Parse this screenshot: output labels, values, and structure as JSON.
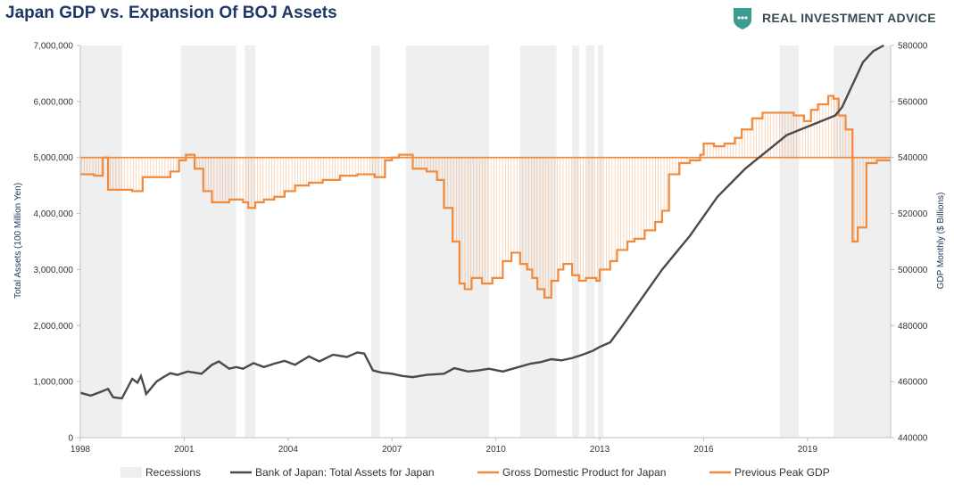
{
  "header": {
    "title": "Japan GDP vs. Expansion Of BOJ Assets",
    "brand_name": "REAL INVESTMENT ADVICE",
    "brand_icon": "chart-shield-icon"
  },
  "colors": {
    "title": "#1f3864",
    "boj": "#4a4a4a",
    "gdp": "#f08a3c",
    "recession": "#efefef",
    "brand": "#3a9d8f"
  },
  "chart_data": {
    "type": "line",
    "title": "Japan GDP vs. Expansion Of BOJ Assets",
    "xlim": [
      1998,
      2021.4
    ],
    "x_ticks": [
      1998,
      2001,
      2004,
      2007,
      2010,
      2013,
      2016,
      2019
    ],
    "x_tick_labels": [
      "1998",
      "2001",
      "2004",
      "2007",
      "2010",
      "2013",
      "2016",
      "2019"
    ],
    "y_left": {
      "label": "Total Assets (100 Million Yen)",
      "lim": [
        0,
        7000000
      ],
      "ticks": [
        0,
        1000000,
        2000000,
        3000000,
        4000000,
        5000000,
        6000000,
        7000000
      ],
      "tick_labels": [
        "0",
        "1,000,000",
        "2,000,000",
        "3,000,000",
        "4,000,000",
        "5,000,000",
        "6,000,000",
        "7,000,000"
      ]
    },
    "y_right": {
      "label": "GDP Monthly ($ Billions)",
      "lim": [
        440000,
        580000
      ],
      "ticks": [
        440000,
        460000,
        480000,
        500000,
        520000,
        540000,
        560000,
        580000
      ],
      "tick_labels": [
        "440000",
        "460000",
        "480000",
        "500000",
        "520000",
        "540000",
        "560000",
        "580000"
      ]
    },
    "recessions": [
      [
        1998.0,
        1999.2
      ],
      [
        2000.9,
        2002.5
      ],
      [
        2002.75,
        2003.05
      ],
      [
        2006.4,
        2006.65
      ],
      [
        2007.4,
        2009.8
      ],
      [
        2010.7,
        2011.75
      ],
      [
        2012.2,
        2012.4
      ],
      [
        2012.6,
        2012.85
      ],
      [
        2012.95,
        2013.1
      ],
      [
        2018.2,
        2018.75
      ],
      [
        2019.75,
        2021.4
      ]
    ],
    "legend": [
      "Recessions",
      "Bank of Japan: Total Assets for Japan",
      "Gross Domestic Product for Japan",
      "Previous Peak GDP"
    ],
    "legend_position": "bottom",
    "grid": false,
    "series": [
      {
        "name": "Bank of Japan: Total Assets for Japan",
        "axis": "left",
        "x": [
          1998.0,
          1998.3,
          1998.6,
          1998.8,
          1998.95,
          1999.2,
          1999.5,
          1999.65,
          1999.75,
          1999.85,
          1999.9,
          2000.0,
          2000.2,
          2000.4,
          2000.6,
          2000.8,
          2001.1,
          2001.5,
          2001.8,
          2002.0,
          2002.3,
          2002.5,
          2002.7,
          2003.0,
          2003.3,
          2003.6,
          2003.9,
          2004.2,
          2004.6,
          2004.9,
          2005.3,
          2005.7,
          2006.0,
          2006.2,
          2006.45,
          2006.7,
          2007.0,
          2007.3,
          2007.6,
          2008.0,
          2008.5,
          2008.8,
          2009.2,
          2009.5,
          2009.8,
          2010.2,
          2010.6,
          2011.0,
          2011.3,
          2011.6,
          2011.9,
          2012.2,
          2012.5,
          2012.8,
          2013.0,
          2013.3,
          2013.6,
          2014.0,
          2014.4,
          2014.8,
          2015.2,
          2015.6,
          2016.0,
          2016.4,
          2016.8,
          2017.2,
          2017.6,
          2018.0,
          2018.4,
          2018.8,
          2019.2,
          2019.6,
          2019.8,
          2020.0,
          2020.3,
          2020.6,
          2020.9,
          2021.2
        ],
        "values": [
          800000,
          750000,
          820000,
          870000,
          720000,
          700000,
          1050000,
          980000,
          1100000,
          900000,
          780000,
          850000,
          1000000,
          1080000,
          1150000,
          1120000,
          1180000,
          1140000,
          1300000,
          1360000,
          1230000,
          1260000,
          1230000,
          1330000,
          1260000,
          1320000,
          1370000,
          1300000,
          1450000,
          1360000,
          1480000,
          1440000,
          1520000,
          1500000,
          1200000,
          1160000,
          1140000,
          1100000,
          1080000,
          1120000,
          1140000,
          1240000,
          1180000,
          1200000,
          1230000,
          1180000,
          1250000,
          1320000,
          1350000,
          1400000,
          1380000,
          1420000,
          1480000,
          1550000,
          1620000,
          1700000,
          1950000,
          2300000,
          2650000,
          3000000,
          3300000,
          3600000,
          3950000,
          4300000,
          4550000,
          4800000,
          5000000,
          5200000,
          5400000,
          5500000,
          5600000,
          5700000,
          5750000,
          5900000,
          6300000,
          6700000,
          6900000,
          7100000
        ]
      },
      {
        "name": "Gross Domestic Product for Japan",
        "axis": "right",
        "x": [
          1998.0,
          1998.4,
          1998.65,
          1998.8,
          1999.5,
          1999.8,
          2000.6,
          2000.85,
          2001.05,
          2001.3,
          2001.55,
          2001.8,
          2002.3,
          2002.7,
          2002.85,
          2003.05,
          2003.3,
          2003.6,
          2003.9,
          2004.2,
          2004.6,
          2005.0,
          2005.5,
          2006.0,
          2006.5,
          2006.8,
          2007.0,
          2007.2,
          2007.6,
          2008.0,
          2008.3,
          2008.5,
          2008.75,
          2008.95,
          2009.1,
          2009.3,
          2009.6,
          2009.9,
          2010.2,
          2010.45,
          2010.7,
          2010.9,
          2011.05,
          2011.2,
          2011.4,
          2011.6,
          2011.8,
          2011.95,
          2012.2,
          2012.4,
          2012.6,
          2012.9,
          2013.0,
          2013.3,
          2013.5,
          2013.8,
          2014.0,
          2014.3,
          2014.6,
          2014.8,
          2015.0,
          2015.3,
          2015.6,
          2015.9,
          2016.0,
          2016.3,
          2016.6,
          2016.9,
          2017.1,
          2017.4,
          2017.7,
          2018.0,
          2018.3,
          2018.6,
          2018.9,
          2019.1,
          2019.3,
          2019.6,
          2019.75,
          2019.9,
          2020.1,
          2020.3,
          2020.45,
          2020.7,
          2021.0,
          2021.3
        ],
        "values": [
          534000,
          533500,
          540000,
          528500,
          528000,
          533000,
          535000,
          539000,
          541000,
          536000,
          528000,
          524000,
          525000,
          524000,
          522000,
          524000,
          525000,
          526000,
          528000,
          530000,
          531000,
          532000,
          533500,
          534000,
          533000,
          539000,
          540000,
          541000,
          536000,
          535000,
          532000,
          522000,
          510000,
          495000,
          493000,
          497000,
          495000,
          497000,
          503000,
          506000,
          502000,
          500000,
          497000,
          493000,
          490000,
          496000,
          500000,
          502000,
          498000,
          496000,
          497000,
          496000,
          500000,
          503000,
          507000,
          510000,
          511000,
          514000,
          517000,
          521000,
          534000,
          538000,
          539000,
          541000,
          545000,
          544000,
          545000,
          547000,
          550000,
          554000,
          556000,
          556000,
          556000,
          555000,
          553000,
          557000,
          559000,
          562000,
          561000,
          555000,
          550000,
          510000,
          515000,
          538000,
          539000,
          539000
        ]
      },
      {
        "name": "Previous Peak GDP",
        "axis": "right",
        "x": [
          1998.0,
          2021.4
        ],
        "values": [
          540000,
          540000
        ]
      }
    ]
  }
}
